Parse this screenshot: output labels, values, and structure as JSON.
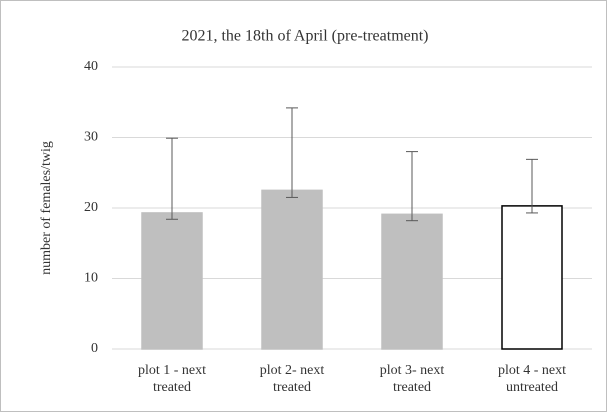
{
  "chart_data": {
    "type": "bar",
    "title": "2021, the 18th of April (pre-treatment)",
    "y_label": "number of females/twig",
    "categories": [
      [
        "plot 1 - next",
        "treated"
      ],
      [
        "plot 2- next",
        "treated"
      ],
      [
        "plot 3- next",
        "treated"
      ],
      [
        "plot 4 - next",
        "untreated"
      ]
    ],
    "values": [
      19.3,
      22.5,
      19.1,
      20.3
    ],
    "errors_plus": [
      10.6,
      11.7,
      8.9,
      6.6
    ],
    "errors_minus": [
      0.9,
      1.0,
      0.9,
      1.0
    ],
    "colors": [
      "#bfbfbf",
      "#bfbfbf",
      "#bfbfbf",
      "#ffffff"
    ],
    "edgecolors": [
      "#bfbfbf",
      "#bfbfbf",
      "#bfbfbf",
      "#000000"
    ],
    "ylim": [
      0,
      40
    ],
    "yticks": [
      0,
      10,
      20,
      30,
      40
    ],
    "grid": true
  }
}
